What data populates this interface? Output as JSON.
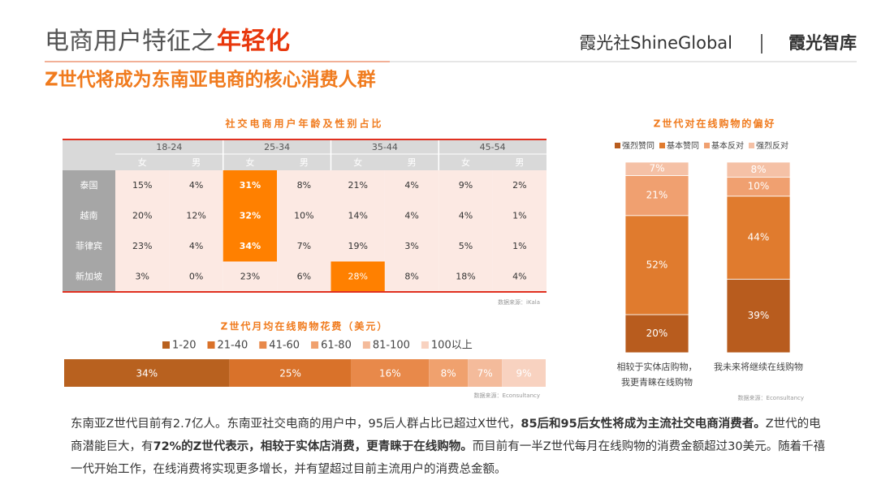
{
  "header": {
    "title_prefix": "电商用户特征之",
    "title_highlight": "年轻化",
    "subtitle": "Z世代将成为东南亚电商的核心消费人群",
    "brand": "霞光社ShineGlobal",
    "brand_sub": "霞光智库"
  },
  "table": {
    "title": "社交电商用户年龄及性别占比",
    "age_groups": [
      "18-24",
      "25-34",
      "35-44",
      "45-54"
    ],
    "genders": [
      "女",
      "男"
    ],
    "rows": [
      {
        "country": "泰国",
        "cells": [
          "15%",
          "4%",
          "31%",
          "8%",
          "21%",
          "4%",
          "9%",
          "2%"
        ]
      },
      {
        "country": "越南",
        "cells": [
          "20%",
          "12%",
          "32%",
          "10%",
          "14%",
          "4%",
          "4%",
          "1%"
        ]
      },
      {
        "country": "菲律宾",
        "cells": [
          "23%",
          "4%",
          "34%",
          "7%",
          "19%",
          "3%",
          "5%",
          "1%"
        ]
      },
      {
        "country": "新加坡",
        "cells": [
          "3%",
          "0%",
          "23%",
          "6%",
          "28%",
          "8%",
          "18%",
          "4%"
        ]
      }
    ],
    "highlight_cells": [
      [
        0,
        2
      ],
      [
        1,
        2
      ],
      [
        2,
        2
      ],
      [
        3,
        4
      ]
    ],
    "highlight_color": "#ff8000",
    "source": "数据来源：iKala"
  },
  "chart_data": [
    {
      "type": "bar",
      "orientation": "horizontal",
      "stacked": true,
      "title": "Z世代月均在线购物花费（美元）",
      "source": "数据来源：Econsultancy",
      "series": [
        {
          "name": "1-20",
          "color": "#b8611f",
          "values": [
            34
          ],
          "value_labels": [
            "34%"
          ]
        },
        {
          "name": "21-40",
          "color": "#d9722a",
          "values": [
            25
          ],
          "value_labels": [
            "25%"
          ]
        },
        {
          "name": "41-60",
          "color": "#e8894a",
          "values": [
            16
          ],
          "value_labels": [
            "16%"
          ]
        },
        {
          "name": "61-80",
          "color": "#f0a16e",
          "values": [
            8
          ],
          "value_labels": [
            "8%"
          ]
        },
        {
          "name": "81-100",
          "color": "#f4bb9b",
          "values": [
            7
          ],
          "value_labels": [
            "7%"
          ]
        },
        {
          "name": "100以上",
          "color": "#f8d2c0",
          "values": [
            9
          ],
          "value_labels": [
            "9%"
          ]
        }
      ]
    },
    {
      "type": "bar",
      "orientation": "vertical",
      "stacked": true,
      "title": "Z世代对在线购物的偏好",
      "source": "数据来源：Econsultancy",
      "categories": [
        "相较于实体店购物，\n我更青睐在线购物",
        "我未来将继续在线购物"
      ],
      "series": [
        {
          "name": "强烈赞同",
          "color": "#b85c1e",
          "values": [
            20,
            39
          ],
          "value_labels": [
            "20%",
            "39%"
          ]
        },
        {
          "name": "基本赞同",
          "color": "#e07b2e",
          "values": [
            52,
            44
          ],
          "value_labels": [
            "52%",
            "44%"
          ]
        },
        {
          "name": "基本反对",
          "color": "#f0a070",
          "values": [
            21,
            10
          ],
          "value_labels": [
            "21%",
            "10%"
          ]
        },
        {
          "name": "强烈反对",
          "color": "#f5c1a6",
          "values": [
            7,
            8
          ],
          "value_labels": [
            "7%",
            "8%"
          ]
        }
      ]
    }
  ],
  "paragraph": [
    {
      "text": "东南亚Z世代目前有2.7亿人。东南亚社交电商的用户中，95后人群占比已超过X世代，",
      "bold": false
    },
    {
      "text": "85后和95后女性将成为主流社交电商消费者。",
      "bold": true
    },
    {
      "text": "Z世代的电商潜能巨大，有",
      "bold": false
    },
    {
      "text": "72%的Z世代表示，相较于实体店消费，更青睐于在线购物。",
      "bold": true
    },
    {
      "text": "而目前有一半Z世代每月在线购物的消费金额超过30美元。随着千禧一代开始工作，在线消费将实现更多增长，并有望超过目前主流用户的消费总金额。",
      "bold": false
    }
  ]
}
